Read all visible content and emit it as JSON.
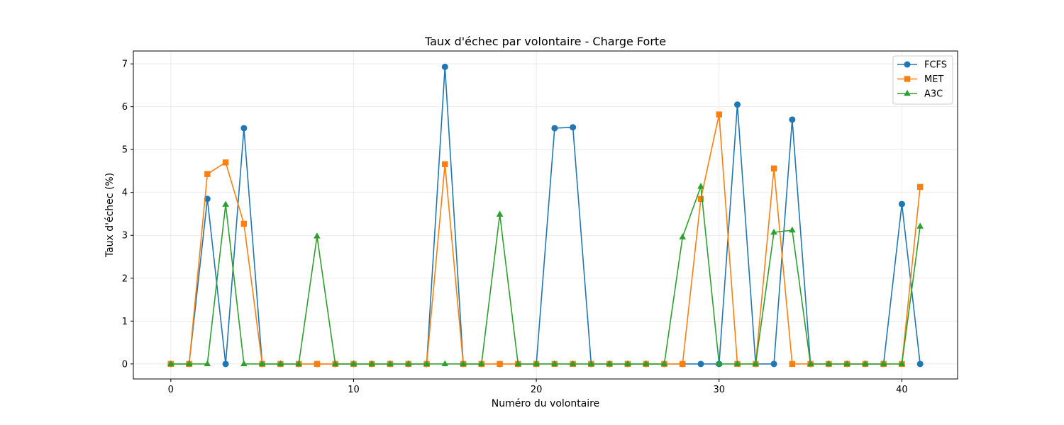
{
  "chart_data": {
    "type": "line",
    "title": "Taux d'échec par volontaire - Charge Forte",
    "xlabel": "Numéro du volontaire",
    "ylabel": "Taux d'échec (%)",
    "xlim": [
      -2.05,
      43.05
    ],
    "ylim": [
      -0.35,
      7.3
    ],
    "xticks": [
      0,
      10,
      20,
      30,
      40
    ],
    "yticks": [
      0,
      1,
      2,
      3,
      4,
      5,
      6,
      7
    ],
    "grid": true,
    "legend_position": "top-right",
    "x": [
      0,
      1,
      2,
      3,
      4,
      5,
      6,
      7,
      8,
      9,
      10,
      11,
      12,
      13,
      14,
      15,
      16,
      17,
      18,
      19,
      20,
      21,
      22,
      23,
      24,
      25,
      26,
      27,
      28,
      29,
      30,
      31,
      32,
      33,
      34,
      35,
      36,
      37,
      38,
      39,
      40,
      41
    ],
    "series": [
      {
        "name": "FCFS",
        "color": "#1f77b4",
        "marker": "circle",
        "values": [
          0,
          0,
          3.85,
          0,
          5.5,
          0,
          0,
          0,
          0,
          0,
          0,
          0,
          0,
          0,
          0,
          6.93,
          0,
          0,
          0,
          0,
          0,
          5.5,
          5.52,
          0,
          0,
          0,
          0,
          0,
          0,
          0,
          0,
          6.05,
          0,
          0,
          5.7,
          0,
          0,
          0,
          0,
          0,
          3.73,
          0
        ]
      },
      {
        "name": "MET",
        "color": "#ff7f0e",
        "marker": "square",
        "values": [
          0,
          0,
          4.43,
          4.7,
          3.27,
          0,
          0,
          0,
          0,
          0,
          0,
          0,
          0,
          0,
          0,
          4.66,
          0,
          0,
          0,
          0,
          0,
          0,
          0,
          0,
          0,
          0,
          0,
          0,
          0,
          3.85,
          5.82,
          0,
          0,
          4.56,
          0,
          0,
          0,
          0,
          0,
          0,
          0,
          4.13
        ]
      },
      {
        "name": "A3C",
        "color": "#2ca02c",
        "marker": "triangle",
        "values": [
          0,
          0,
          0,
          3.72,
          0,
          0,
          0,
          0,
          2.98,
          0,
          0,
          0,
          0,
          0,
          0,
          0,
          0,
          0,
          3.49,
          0,
          0,
          0,
          0,
          0,
          0,
          0,
          0,
          0,
          2.96,
          4.14,
          0,
          0,
          0,
          3.07,
          3.12,
          0,
          0,
          0,
          0,
          0,
          0,
          3.21
        ]
      }
    ]
  }
}
